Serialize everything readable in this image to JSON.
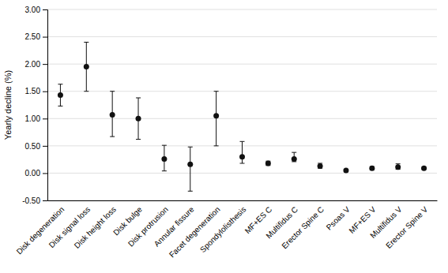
{
  "chart_data": {
    "type": "scatter",
    "categories": [
      "Disk degeneration",
      "Disk signal loss",
      "Disk height loss",
      "Disk bulge",
      "Disk protrusion",
      "Annular fissure",
      "Facet degeneration",
      "Spondylolisthesis",
      "MF+ES C",
      "Multifidus C",
      "Erector Spine C",
      "Psoas V",
      "MF+ES V",
      "Multifidus V",
      "Erector Spine V"
    ],
    "values": [
      1.43,
      1.95,
      1.07,
      1.0,
      0.26,
      0.16,
      1.05,
      0.3,
      0.18,
      0.26,
      0.13,
      0.05,
      0.09,
      0.11,
      0.09
    ],
    "errors_low": [
      0.2,
      0.45,
      0.4,
      0.38,
      0.22,
      0.49,
      0.55,
      0.12,
      0.04,
      0.05,
      0.04,
      0.02,
      0.03,
      0.04,
      0.02
    ],
    "errors_high": [
      0.2,
      0.45,
      0.43,
      0.38,
      0.25,
      0.32,
      0.45,
      0.28,
      0.04,
      0.12,
      0.05,
      0.02,
      0.03,
      0.06,
      0.02
    ],
    "color": "#111111",
    "ylabel": "Yearly decline (%)",
    "ylim": [
      -0.5,
      3.0
    ],
    "yticks": [
      {
        "value": -0.5,
        "label": "-0.50"
      },
      {
        "value": 0.0,
        "label": "0.00"
      },
      {
        "value": 0.5,
        "label": "0.50"
      },
      {
        "value": 1.0,
        "label": "1.00"
      },
      {
        "value": 1.5,
        "label": "1.50"
      },
      {
        "value": 2.0,
        "label": "2.00"
      },
      {
        "value": 2.5,
        "label": "2.50"
      },
      {
        "value": 3.0,
        "label": "3.00"
      }
    ],
    "grid": true
  }
}
